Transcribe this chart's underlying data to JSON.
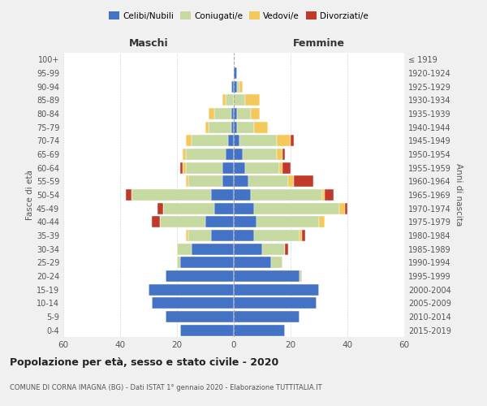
{
  "age_groups": [
    "0-4",
    "5-9",
    "10-14",
    "15-19",
    "20-24",
    "25-29",
    "30-34",
    "35-39",
    "40-44",
    "45-49",
    "50-54",
    "55-59",
    "60-64",
    "65-69",
    "70-74",
    "75-79",
    "80-84",
    "85-89",
    "90-94",
    "95-99",
    "100+"
  ],
  "birth_years": [
    "2015-2019",
    "2010-2014",
    "2005-2009",
    "2000-2004",
    "1995-1999",
    "1990-1994",
    "1985-1989",
    "1980-1984",
    "1975-1979",
    "1970-1974",
    "1965-1969",
    "1960-1964",
    "1955-1959",
    "1950-1954",
    "1945-1949",
    "1940-1944",
    "1935-1939",
    "1930-1934",
    "1925-1929",
    "1920-1924",
    "≤ 1919"
  ],
  "males": {
    "celibi": [
      19,
      24,
      29,
      30,
      24,
      19,
      15,
      8,
      10,
      7,
      8,
      4,
      4,
      3,
      2,
      1,
      1,
      0,
      1,
      0,
      0
    ],
    "coniugati": [
      0,
      0,
      0,
      0,
      0,
      1,
      5,
      8,
      16,
      18,
      28,
      12,
      13,
      14,
      13,
      8,
      6,
      3,
      0,
      0,
      0
    ],
    "vedovi": [
      0,
      0,
      0,
      0,
      0,
      0,
      0,
      1,
      0,
      0,
      0,
      1,
      1,
      1,
      2,
      1,
      2,
      1,
      0,
      0,
      0
    ],
    "divorziati": [
      0,
      0,
      0,
      0,
      0,
      0,
      0,
      0,
      3,
      2,
      2,
      0,
      1,
      0,
      0,
      0,
      0,
      0,
      0,
      0,
      0
    ]
  },
  "females": {
    "nubili": [
      18,
      23,
      29,
      30,
      23,
      13,
      10,
      7,
      8,
      7,
      6,
      5,
      4,
      3,
      2,
      1,
      1,
      0,
      1,
      1,
      0
    ],
    "coniugate": [
      0,
      0,
      0,
      0,
      1,
      4,
      8,
      16,
      22,
      30,
      25,
      14,
      12,
      12,
      13,
      6,
      5,
      4,
      1,
      0,
      0
    ],
    "vedove": [
      0,
      0,
      0,
      0,
      0,
      0,
      0,
      1,
      2,
      2,
      1,
      2,
      1,
      2,
      5,
      5,
      3,
      5,
      1,
      0,
      0
    ],
    "divorziate": [
      0,
      0,
      0,
      0,
      0,
      0,
      1,
      1,
      0,
      1,
      3,
      7,
      3,
      1,
      1,
      0,
      0,
      0,
      0,
      0,
      0
    ]
  },
  "colors": {
    "celibi_nubili": "#4472C4",
    "coniugati": "#c5d9a0",
    "vedovi": "#f5c85c",
    "divorziati": "#c0392b"
  },
  "xlim": 60,
  "title": "Popolazione per età, sesso e stato civile - 2020",
  "subtitle": "COMUNE DI CORNA IMAGNA (BG) - Dati ISTAT 1° gennaio 2020 - Elaborazione TUTTITALIA.IT",
  "xlabel_left": "Maschi",
  "xlabel_right": "Femmine",
  "ylabel_left": "Fasce di età",
  "ylabel_right": "Anni di nascita",
  "bg_color": "#f0f0f0",
  "plot_bg_color": "#ffffff"
}
